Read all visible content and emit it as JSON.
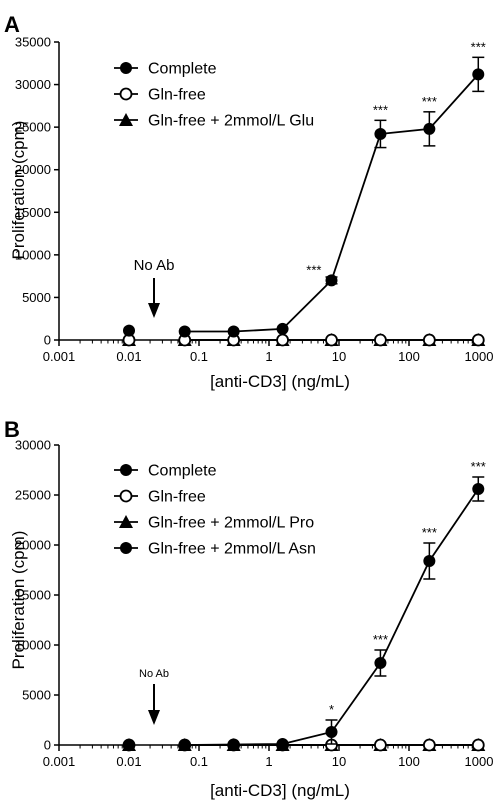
{
  "chart_data": [
    {
      "type": "line",
      "panel_label": "A",
      "xlabel": "[anti-CD3] (ng/mL)",
      "ylabel": "Proliferation (cpm)",
      "xscale": "log",
      "xlim": [
        0.001,
        1000
      ],
      "ylim": [
        0,
        35000
      ],
      "xticks": [
        "0.001",
        "0.01",
        "0.1",
        "1",
        "10",
        "100",
        "1000"
      ],
      "yticks": [
        "0",
        "5000",
        "10000",
        "15000",
        "20000",
        "25000",
        "30000",
        "35000"
      ],
      "legend_position": "top-left",
      "annotation": "No Ab",
      "x": [
        0.01,
        0.0625,
        0.3125,
        1.5625,
        7.8125,
        39.0625,
        195.3125,
        976.5625
      ],
      "series": [
        {
          "name": "Complete",
          "marker": "filled-circle",
          "connected_from_index": 1,
          "values": [
            1100,
            1000,
            1000,
            1300,
            7000,
            24200,
            24800,
            31200
          ],
          "errors": [
            0,
            0,
            0,
            0,
            400,
            1600,
            2000,
            2000
          ],
          "stars": [
            "",
            "",
            "",
            "",
            "***",
            "***",
            "***",
            "***"
          ]
        },
        {
          "name": "Gln-free",
          "marker": "open-circle",
          "connected_from_index": 1,
          "values": [
            0,
            0,
            0,
            0,
            0,
            0,
            0,
            0
          ]
        },
        {
          "name": "Gln-free + 2mmol/L Glu",
          "marker": "filled-triangle",
          "connected_from_index": 1,
          "values": [
            0,
            0,
            0,
            0,
            0,
            0,
            0,
            0
          ]
        }
      ]
    },
    {
      "type": "line",
      "panel_label": "B",
      "xlabel": "[anti-CD3] (ng/mL)",
      "ylabel": "Proliferation (cpm)",
      "xscale": "log",
      "xlim": [
        0.001,
        1000
      ],
      "ylim": [
        0,
        30000
      ],
      "xticks": [
        "0.001",
        "0.01",
        "0.1",
        "1",
        "10",
        "100",
        "1000"
      ],
      "yticks": [
        "0",
        "5000",
        "10000",
        "15000",
        "20000",
        "25000",
        "30000"
      ],
      "legend_position": "top-left",
      "annotation": "No Ab",
      "x": [
        0.01,
        0.0625,
        0.3125,
        1.5625,
        7.8125,
        39.0625,
        195.3125,
        976.5625
      ],
      "series": [
        {
          "name": "Complete",
          "marker": "filled-circle",
          "connected_from_index": 1,
          "values": [
            0,
            0,
            50,
            100,
            1300,
            8200,
            18400,
            25600
          ],
          "errors": [
            0,
            0,
            0,
            0,
            1200,
            1300,
            1800,
            1200
          ],
          "stars": [
            "",
            "",
            "",
            "",
            "*",
            "***",
            "***",
            "***"
          ]
        },
        {
          "name": "Gln-free",
          "marker": "open-circle",
          "connected_from_index": 1,
          "values": [
            0,
            0,
            0,
            0,
            0,
            0,
            0,
            0
          ]
        },
        {
          "name": "Gln-free + 2mmol/L Pro",
          "marker": "filled-triangle",
          "connected_from_index": 1,
          "values": [
            0,
            0,
            0,
            0,
            0,
            0,
            0,
            0
          ]
        },
        {
          "name": "Gln-free + 2mmol/L Asn",
          "marker": "filled-circle",
          "connected_from_index": 1,
          "values": [
            0,
            0,
            0,
            0,
            0,
            0,
            0,
            0
          ]
        }
      ]
    }
  ]
}
